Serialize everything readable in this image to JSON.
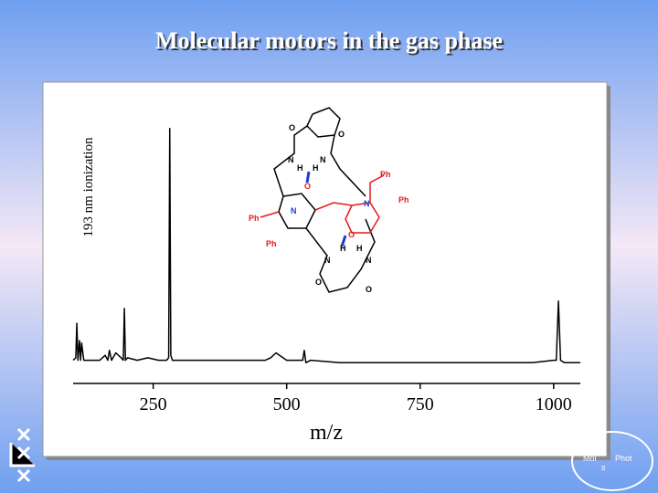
{
  "chart_data": {
    "type": "line",
    "title": "Molecular motors in the gas phase",
    "ylabel": "193 nm ionization",
    "xlabel": "m/z",
    "x": [
      100,
      105,
      107,
      109,
      112,
      114,
      116,
      120,
      150,
      160,
      165,
      168,
      172,
      180,
      190,
      194,
      196,
      198,
      202,
      220,
      240,
      260,
      275,
      279,
      281,
      283,
      286,
      290,
      320,
      400,
      460,
      470,
      480,
      500,
      520,
      530,
      533,
      536,
      545,
      600,
      700,
      800,
      900,
      960,
      1000,
      1005,
      1009,
      1013,
      1020,
      1050
    ],
    "values": [
      2,
      3,
      17,
      2,
      10,
      2,
      9,
      2,
      2,
      4,
      2,
      6,
      2,
      5,
      3,
      2,
      23,
      2,
      3,
      2,
      3,
      2,
      2,
      3,
      96,
      4,
      2,
      2,
      2,
      2,
      2,
      3,
      5,
      2,
      2,
      2,
      6,
      1,
      2,
      1,
      1,
      1,
      1,
      1,
      2,
      2,
      26,
      2,
      1,
      1
    ],
    "color": "#000000",
    "xlim": [
      100,
      1050
    ],
    "xticks": [
      250,
      500,
      750,
      1000
    ],
    "ylim": [
      0,
      100
    ],
    "annotations": [
      "O",
      "O",
      "N",
      "N",
      "H",
      "H",
      "O",
      "Ph",
      "Ph",
      "Ph",
      "Ph",
      "N",
      "N",
      "O",
      "H",
      "H",
      "N",
      "N",
      "O",
      "O"
    ]
  },
  "footer": {
    "logo": [
      "Mol",
      "Phot",
      "s"
    ]
  }
}
